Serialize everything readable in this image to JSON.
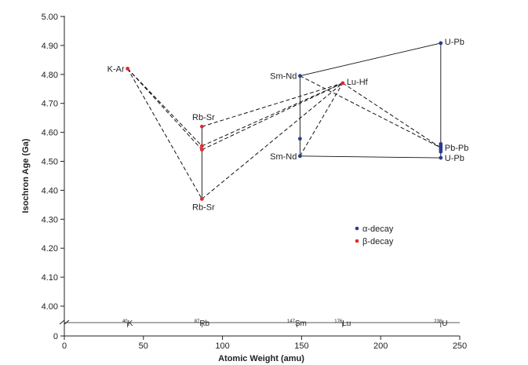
{
  "chart_data": {
    "type": "scatter",
    "title": "",
    "xlabel": "Atomic Weight (amu)",
    "ylabel": "Isochron Age (Ga)",
    "xlim": [
      0,
      250
    ],
    "ylim_main": [
      4.0,
      5.0
    ],
    "y_ticks": [
      "5.00",
      "4.90",
      "4.80",
      "4.70",
      "4.60",
      "4.50",
      "4.40",
      "4.30",
      "4.20",
      "4.10",
      "4.00",
      "0"
    ],
    "y_tick_values": [
      5.0,
      4.9,
      4.8,
      4.7,
      4.6,
      4.5,
      4.4,
      4.3,
      4.2,
      4.1,
      4.0
    ],
    "x_ticks": [
      0,
      50,
      100,
      150,
      200,
      250
    ],
    "x_tick_labels": [
      "0",
      "50",
      "100",
      "150",
      "200",
      "250"
    ],
    "isotope_markers": [
      {
        "x": 40,
        "sup": "40",
        "sym": "K"
      },
      {
        "x": 87,
        "sup": "87",
        "sym": "Rb"
      },
      {
        "x": 147,
        "sup": "147",
        "sym": "Sm"
      },
      {
        "x": 176,
        "sup": "176",
        "sym": "Lu"
      },
      {
        "x": 238,
        "sup": "238",
        "sym": "U"
      }
    ],
    "series": [
      {
        "name": "α-decay",
        "color": "#2b3990",
        "points": [
          {
            "x": 149,
            "y": 4.795
          },
          {
            "x": 149,
            "y": 4.578
          },
          {
            "x": 149,
            "y": 4.518
          },
          {
            "x": 238,
            "y": 4.908
          },
          {
            "x": 238,
            "y": 4.56
          },
          {
            "x": 238,
            "y": 4.553
          },
          {
            "x": 238,
            "y": 4.547
          },
          {
            "x": 238,
            "y": 4.54
          },
          {
            "x": 238,
            "y": 4.533
          },
          {
            "x": 238,
            "y": 4.512
          }
        ]
      },
      {
        "name": "β-decay",
        "color": "#e8262d",
        "points": [
          {
            "x": 40,
            "y": 4.82
          },
          {
            "x": 87,
            "y": 4.62
          },
          {
            "x": 87,
            "y": 4.553
          },
          {
            "x": 87,
            "y": 4.54
          },
          {
            "x": 87,
            "y": 4.37
          },
          {
            "x": 176,
            "y": 4.77
          }
        ]
      }
    ],
    "point_labels": [
      {
        "text": "K-Ar",
        "x": 40,
        "y": 4.82,
        "anchor": "end",
        "dx": -4,
        "dy": 4
      },
      {
        "text": "Rb-Sr",
        "x": 87,
        "y": 4.62,
        "anchor": "middle",
        "dx": 2,
        "dy": -8
      },
      {
        "text": "Rb-Sr",
        "x": 87,
        "y": 4.37,
        "anchor": "middle",
        "dx": 2,
        "dy": 14
      },
      {
        "text": "Sm-Nd",
        "x": 149,
        "y": 4.795,
        "anchor": "end",
        "dx": -4,
        "dy": 4
      },
      {
        "text": "Sm-Nd",
        "x": 149,
        "y": 4.518,
        "anchor": "end",
        "dx": -4,
        "dy": 4
      },
      {
        "text": "Lu-Hf",
        "x": 176,
        "y": 4.77,
        "anchor": "start",
        "dx": 5,
        "dy": 2
      },
      {
        "text": "U-Pb",
        "x": 238,
        "y": 4.908,
        "anchor": "start",
        "dx": 5,
        "dy": 2
      },
      {
        "text": "Pb-Pb",
        "x": 238,
        "y": 4.547,
        "anchor": "start",
        "dx": 5,
        "dy": 4
      },
      {
        "text": "U-Pb",
        "x": 238,
        "y": 4.512,
        "anchor": "start",
        "dx": 5,
        "dy": 4
      }
    ],
    "solid_lines": [
      [
        [
          87,
          4.62
        ],
        [
          87,
          4.37
        ]
      ],
      [
        [
          149,
          4.795
        ],
        [
          149,
          4.518
        ]
      ],
      [
        [
          149,
          4.795
        ],
        [
          238,
          4.908
        ]
      ],
      [
        [
          149,
          4.518
        ],
        [
          238,
          4.512
        ]
      ],
      [
        [
          238,
          4.908
        ],
        [
          238,
          4.512
        ]
      ]
    ],
    "dashed_lines": [
      [
        [
          40,
          4.82
        ],
        [
          87,
          4.553
        ]
      ],
      [
        [
          40,
          4.82
        ],
        [
          87,
          4.54
        ]
      ],
      [
        [
          40,
          4.82
        ],
        [
          87,
          4.37
        ]
      ],
      [
        [
          87,
          4.62
        ],
        [
          176,
          4.77
        ]
      ],
      [
        [
          87,
          4.553
        ],
        [
          176,
          4.77
        ]
      ],
      [
        [
          87,
          4.54
        ],
        [
          176,
          4.77
        ]
      ],
      [
        [
          87,
          4.37
        ],
        [
          176,
          4.77
        ]
      ],
      [
        [
          149,
          4.795
        ],
        [
          238,
          4.547
        ]
      ],
      [
        [
          149,
          4.518
        ],
        [
          176,
          4.77
        ]
      ],
      [
        [
          176,
          4.77
        ],
        [
          238,
          4.547
        ]
      ]
    ],
    "legend": {
      "placement": "lower-right",
      "entries": [
        {
          "label": "α-decay",
          "color": "#2b3990"
        },
        {
          "label": "β-decay",
          "color": "#e8262d"
        }
      ]
    },
    "grid": false
  }
}
